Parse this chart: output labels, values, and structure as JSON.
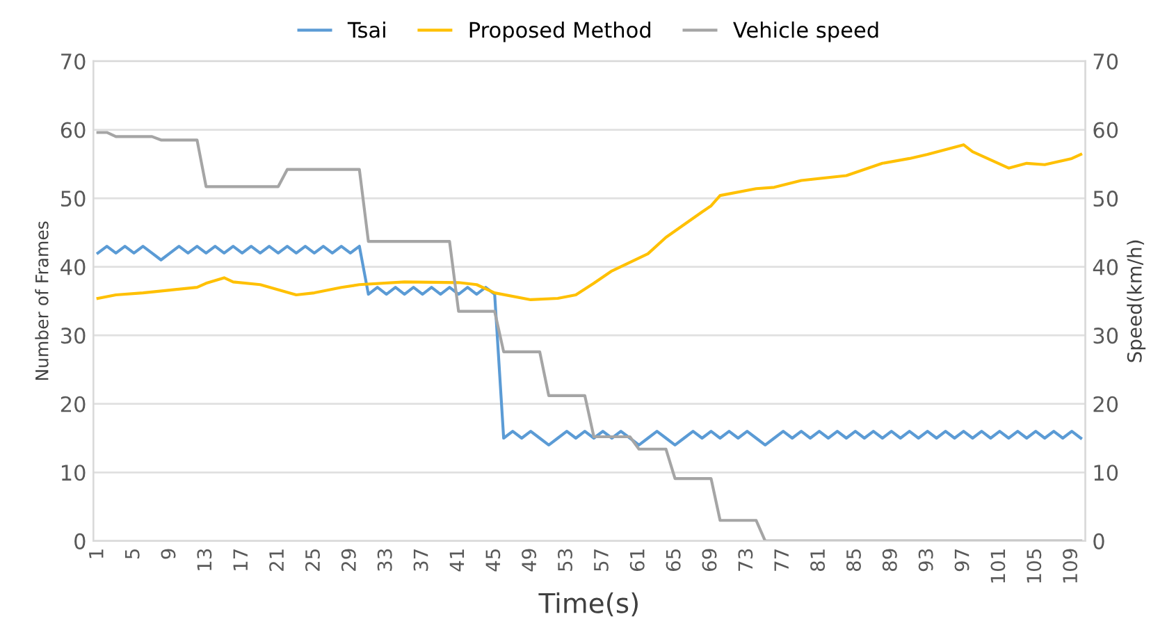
{
  "chart_data": {
    "type": "line",
    "xlabel": "Time(s)",
    "ylabel": "Number of Frames",
    "y2label": "Speed(km/h)",
    "x": [
      1,
      2,
      3,
      4,
      5,
      6,
      7,
      8,
      9,
      10,
      11,
      12,
      13,
      14,
      15,
      16,
      17,
      18,
      19,
      20,
      21,
      22,
      23,
      24,
      25,
      26,
      27,
      28,
      29,
      30,
      31,
      32,
      33,
      34,
      35,
      36,
      37,
      38,
      39,
      40,
      41,
      42,
      43,
      44,
      45,
      46,
      47,
      48,
      49,
      50,
      51,
      52,
      53,
      54,
      55,
      56,
      57,
      58,
      59,
      60,
      61,
      62,
      63,
      64,
      65,
      66,
      67,
      68,
      69,
      70,
      71,
      72,
      73,
      74,
      75,
      76,
      77,
      78,
      79,
      80,
      81,
      82,
      83,
      84,
      85,
      86,
      87,
      88,
      89,
      90,
      91,
      92,
      93,
      94,
      95,
      96,
      97,
      98,
      99,
      100,
      101,
      102,
      103,
      104,
      105,
      106,
      107,
      108,
      109,
      110
    ],
    "xlim": [
      0.5,
      110.5
    ],
    "xticks": [
      1,
      5,
      9,
      13,
      17,
      21,
      25,
      29,
      33,
      37,
      41,
      45,
      49,
      53,
      57,
      61,
      65,
      69,
      73,
      77,
      81,
      85,
      89,
      93,
      97,
      101,
      105,
      109
    ],
    "ylim": [
      0,
      70
    ],
    "yticks": [
      0,
      10,
      20,
      30,
      40,
      50,
      60,
      70
    ],
    "y2lim": [
      0,
      70
    ],
    "y2ticks": [
      0,
      10,
      20,
      30,
      40,
      50,
      60,
      70
    ],
    "grid": "y",
    "legend": "top",
    "marker": "none",
    "line_style": "solid",
    "series": [
      {
        "name": "Tsai",
        "color": "#5b9bd5",
        "values": [
          42,
          43,
          42,
          43,
          42,
          43,
          42,
          41,
          42,
          43,
          42,
          43,
          42,
          43,
          42,
          43,
          42,
          43,
          42,
          43,
          42,
          43,
          42,
          43,
          42,
          43,
          42,
          43,
          42,
          43,
          36,
          37,
          36,
          37,
          36,
          37,
          36,
          37,
          36,
          37,
          36,
          37,
          36,
          37,
          36,
          15,
          16,
          15,
          16,
          15,
          14,
          15,
          16,
          15,
          16,
          15,
          16,
          15,
          16,
          15,
          14,
          15,
          16,
          15,
          14,
          15,
          16,
          15,
          16,
          15,
          16,
          15,
          16,
          15,
          14,
          15,
          16,
          15,
          16,
          15,
          16,
          15,
          16,
          15,
          16,
          15,
          16,
          15,
          16,
          15,
          16,
          15,
          16,
          15,
          16,
          15,
          16,
          15,
          16,
          15,
          16,
          15,
          16,
          15,
          16,
          15,
          16,
          15,
          16,
          15
        ]
      },
      {
        "name": "Proposed Method",
        "color": "#ffc000",
        "x": [
          1,
          3,
          6,
          9,
          12,
          13,
          15,
          16,
          19,
          23,
          25,
          28,
          30,
          35,
          41,
          43,
          45,
          49,
          52,
          54,
          56,
          58,
          62,
          64,
          68,
          69,
          70,
          74,
          76,
          79,
          84,
          88,
          91,
          93,
          97,
          98,
          102,
          104,
          106,
          109,
          110
        ],
        "values": [
          35.4,
          35.9,
          36.2,
          36.6,
          37.0,
          37.6,
          38.4,
          37.8,
          37.4,
          35.9,
          36.2,
          37.0,
          37.4,
          37.8,
          37.7,
          37.4,
          36.2,
          35.2,
          35.4,
          35.9,
          37.6,
          39.4,
          41.9,
          44.3,
          48.0,
          48.9,
          50.4,
          51.4,
          51.6,
          52.6,
          53.3,
          55.1,
          55.8,
          56.4,
          57.8,
          56.8,
          54.4,
          55.1,
          54.9,
          55.8,
          56.4
        ]
      },
      {
        "name": "Vehicle speed",
        "color": "#a5a5a5",
        "axis": "y2",
        "values": [
          59.6,
          59.6,
          59.0,
          59.0,
          59.0,
          59.0,
          59.0,
          58.5,
          58.5,
          58.5,
          58.5,
          58.5,
          51.7,
          51.7,
          51.7,
          51.7,
          51.7,
          51.7,
          51.7,
          51.7,
          51.7,
          54.2,
          54.2,
          54.2,
          54.2,
          54.2,
          54.2,
          54.2,
          54.2,
          54.2,
          43.7,
          43.7,
          43.7,
          43.7,
          43.7,
          43.7,
          43.7,
          43.7,
          43.7,
          43.7,
          33.5,
          33.5,
          33.5,
          33.5,
          33.5,
          27.6,
          27.6,
          27.6,
          27.6,
          27.6,
          21.2,
          21.2,
          21.2,
          21.2,
          21.2,
          15.2,
          15.2,
          15.2,
          15.2,
          15.2,
          13.4,
          13.4,
          13.4,
          13.4,
          9.1,
          9.1,
          9.1,
          9.1,
          9.1,
          3.0,
          3.0,
          3.0,
          3.0,
          3.0,
          0,
          0,
          0,
          0,
          0,
          0,
          0,
          0,
          0,
          0,
          0,
          0,
          0,
          0,
          0,
          0,
          0,
          0,
          0,
          0,
          0,
          0,
          0,
          0,
          0,
          0,
          0,
          0,
          0,
          0,
          0,
          0,
          0,
          0,
          0,
          0
        ]
      }
    ]
  }
}
